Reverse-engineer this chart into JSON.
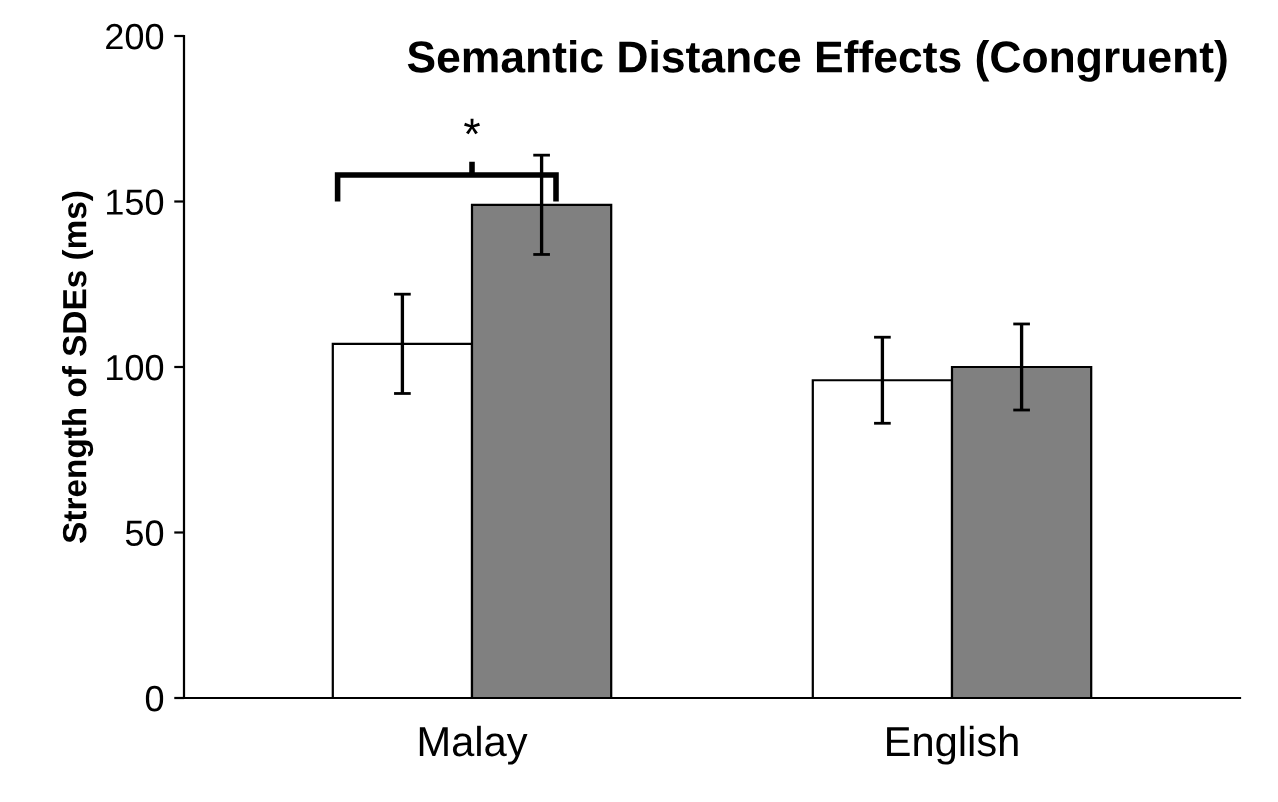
{
  "chart_data": {
    "type": "bar",
    "title": "Semantic Distance Effects (Congruent)",
    "ylabel": "Strength of SDEs (ms)",
    "categories": [
      "Malay",
      "English"
    ],
    "series": [
      {
        "color": "#ffffff",
        "values": [
          107,
          96
        ],
        "errors": [
          15,
          13
        ]
      },
      {
        "color": "#808080",
        "values": [
          149,
          100
        ],
        "errors": [
          15,
          13
        ]
      }
    ],
    "ylim": [
      0,
      200
    ],
    "yticks": [
      0,
      50,
      100,
      150,
      200
    ],
    "grid": false,
    "legend": false,
    "annotations": [
      "*"
    ]
  }
}
